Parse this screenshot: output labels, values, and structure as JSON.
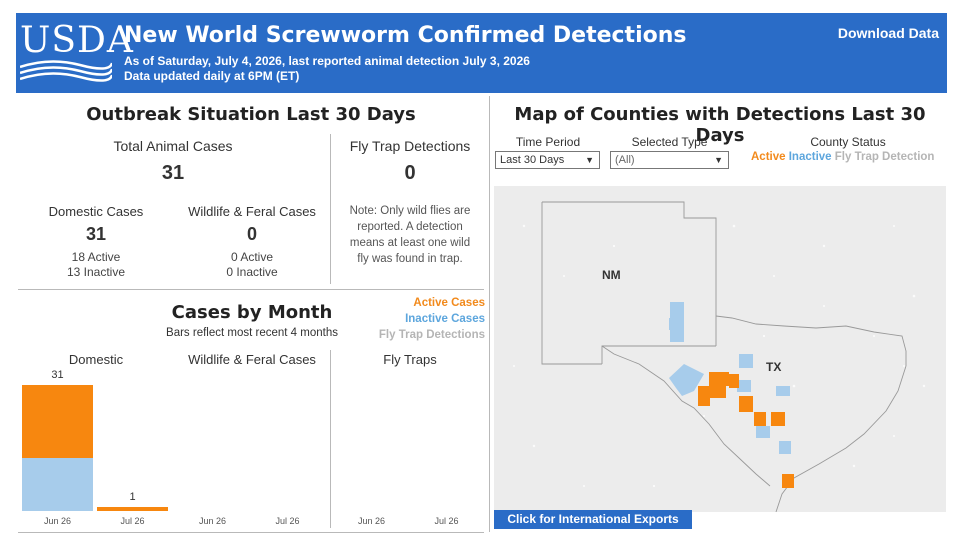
{
  "header": {
    "logo": "USDA",
    "title": "New World Screwworm Confirmed Detections",
    "subtitle1": "As of Saturday, July 4, 2026, last reported animal detection July 3, 2026",
    "subtitle2": "Data updated daily at 6PM (ET)",
    "download_label": "Download Data"
  },
  "outbreak": {
    "title": "Outbreak Situation Last 30 Days",
    "total_label": "Total Animal Cases",
    "total_value": "31",
    "fly_label": "Fly Trap Detections",
    "fly_value": "0",
    "fly_note_1": "Note: Only wild flies are",
    "fly_note_2": "reported. A detection",
    "fly_note_3": "means at least one wild",
    "fly_note_4": "fly was found in trap.",
    "domestic_label": "Domestic Cases",
    "domestic_value": "31",
    "domestic_active": "18 Active",
    "domestic_inactive": "13 Inactive",
    "wildlife_label": "Wildlife & Feral Cases",
    "wildlife_value": "0",
    "wildlife_active": "0 Active",
    "wildlife_inactive": "0 Inactive"
  },
  "cases_by_month": {
    "title": "Cases by Month",
    "subtitle": "Bars reflect most recent 4 months",
    "legend": {
      "active": "Active Cases",
      "inactive": "Inactive Cases",
      "fly": "Fly Trap Detections"
    },
    "panels": [
      "Domestic",
      "Wildlife & Feral Cases",
      "Fly Traps"
    ],
    "months": [
      "Jun 26",
      "Jul 26"
    ]
  },
  "chart_data": {
    "type": "bar",
    "categories": [
      "Jun 26",
      "Jul 26"
    ],
    "series": [
      {
        "name": "Active Cases",
        "color": "#f7870f",
        "domestic": [
          18,
          1
        ],
        "wildlife": [
          0,
          0
        ]
      },
      {
        "name": "Inactive Cases",
        "color": "#a7cceb",
        "domestic": [
          13,
          0
        ],
        "wildlife": [
          0,
          0
        ]
      },
      {
        "name": "Fly Trap Detections",
        "color": "#c8c8c8",
        "fly_traps": [
          0,
          0
        ]
      }
    ],
    "totals_domestic": [
      31,
      1
    ],
    "ylim": [
      0,
      35
    ]
  },
  "map": {
    "title": "Map of Counties with Detections Last 30 Days",
    "time_period_label": "Time Period",
    "time_period_value": "Last 30 Days",
    "type_label": "Selected Type",
    "type_value": "(All)",
    "status_label": "County Status",
    "status_active": "Active",
    "status_inactive": "Inactive",
    "status_fly": "Fly Trap Detection",
    "state_nm": "NM",
    "state_tx": "TX",
    "intl_button": "Click for International Exports"
  },
  "colors": {
    "header_blue": "#2a6cc7",
    "active_orange": "#f7870f",
    "inactive_blue": "#a7cceb",
    "map_bg": "#ececec"
  }
}
